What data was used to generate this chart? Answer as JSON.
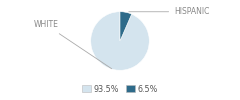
{
  "slices": [
    93.5,
    6.5
  ],
  "labels": [
    "WHITE",
    "HISPANIC"
  ],
  "colors": [
    "#d4e4ee",
    "#2e6b8a"
  ],
  "legend_labels": [
    "93.5%",
    "6.5%"
  ],
  "startangle": 90,
  "background_color": "#ffffff",
  "label_fontsize": 5.5,
  "legend_fontsize": 5.8,
  "label_color": "#888888"
}
